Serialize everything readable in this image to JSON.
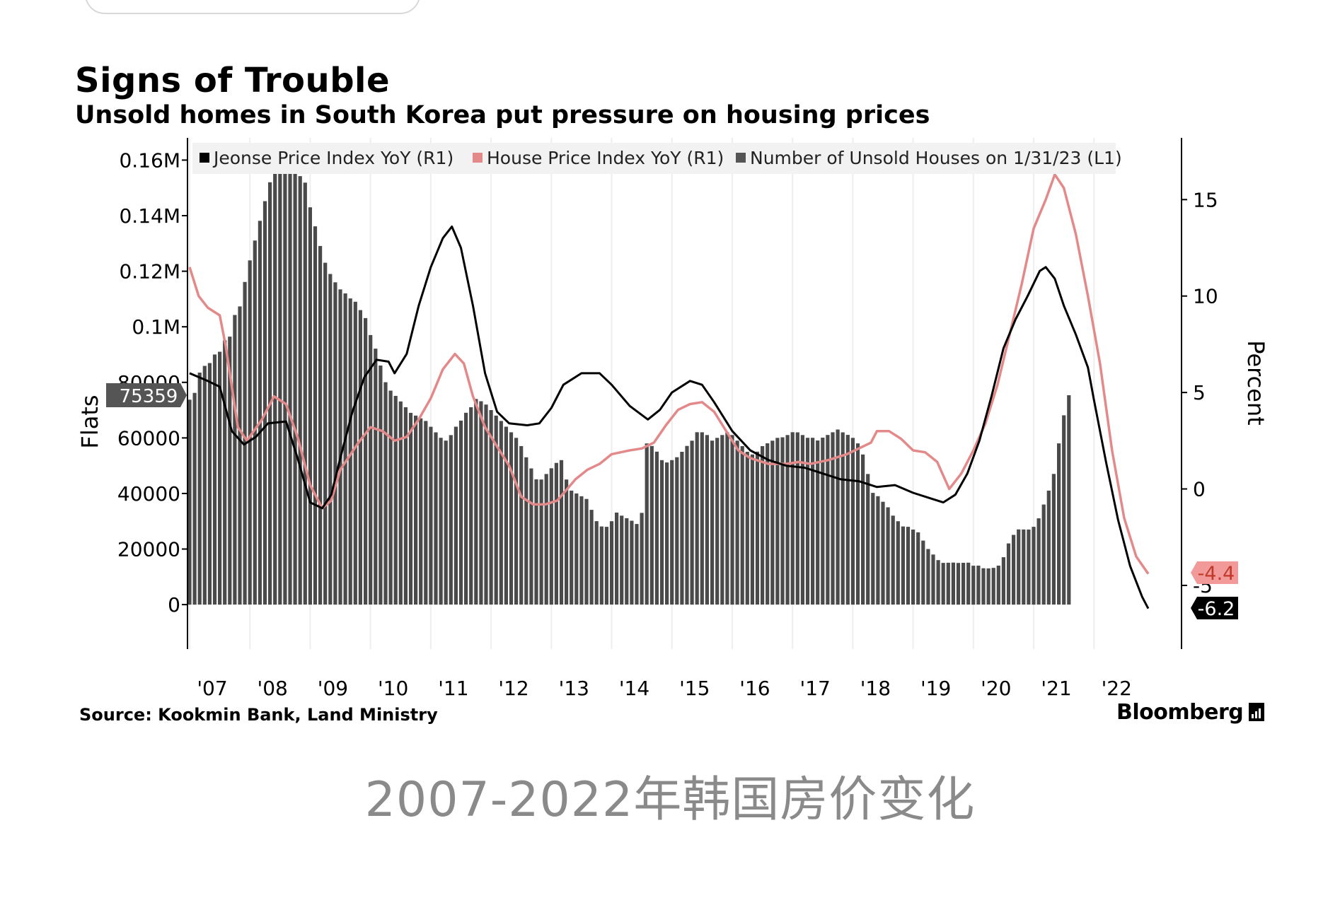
{
  "caption": "2007-2022年韩国房价变化",
  "chart_data": {
    "type": "bar+line",
    "title": "Signs of Trouble",
    "subtitle": "Unsold homes in South Korea put pressure on housing prices",
    "source": "Source: Kookmin Bank, Land Ministry",
    "brand": "Bloomberg",
    "left_axis": {
      "label": "Flats",
      "range": [
        -16000,
        168000
      ],
      "ticks": [
        {
          "value": 0,
          "label": "0"
        },
        {
          "value": 20000,
          "label": "20000"
        },
        {
          "value": 40000,
          "label": "40000"
        },
        {
          "value": 60000,
          "label": "60000"
        },
        {
          "value": 80000,
          "label": "80000"
        },
        {
          "value": 100000,
          "label": "0.1M"
        },
        {
          "value": 120000,
          "label": "0.12M"
        },
        {
          "value": 140000,
          "label": "0.14M"
        },
        {
          "value": 160000,
          "label": "0.16M"
        }
      ],
      "callout": {
        "value": 75359,
        "label": "75359"
      }
    },
    "right_axis": {
      "label": "Percent",
      "range": [
        -8.3,
        18.2
      ],
      "ticks": [
        {
          "value": -5,
          "label": "-5"
        },
        {
          "value": 0,
          "label": "0"
        },
        {
          "value": 5,
          "label": "5"
        },
        {
          "value": 10,
          "label": "10"
        },
        {
          "value": 15,
          "label": "15"
        }
      ]
    },
    "x_range": [
      2007.0,
      2023.1
    ],
    "x_ticks": [
      {
        "value": 2007,
        "label": "'07"
      },
      {
        "value": 2008,
        "label": "'08"
      },
      {
        "value": 2009,
        "label": "'09"
      },
      {
        "value": 2010,
        "label": "'10"
      },
      {
        "value": 2011,
        "label": "'11"
      },
      {
        "value": 2012,
        "label": "'12"
      },
      {
        "value": 2013,
        "label": "'13"
      },
      {
        "value": 2014,
        "label": "'14"
      },
      {
        "value": 2015,
        "label": "'15"
      },
      {
        "value": 2016,
        "label": "'16"
      },
      {
        "value": 2017,
        "label": "'17"
      },
      {
        "value": 2018,
        "label": "'18"
      },
      {
        "value": 2019,
        "label": "'19"
      },
      {
        "value": 2020,
        "label": "'20"
      },
      {
        "value": 2021,
        "label": "'21"
      },
      {
        "value": 2022,
        "label": "'22"
      }
    ],
    "series": [
      {
        "name": "Jeonse Price Index YoY (R1)",
        "kind": "line",
        "axis": "right",
        "color": "#000000",
        "callout": {
          "value": -6.2,
          "label": "-6.2",
          "bg": "#000000",
          "fg": "#ffffff"
        },
        "points": [
          [
            2007.0,
            6.0
          ],
          [
            2007.3,
            5.6
          ],
          [
            2007.5,
            5.3
          ],
          [
            2007.7,
            3.0
          ],
          [
            2007.9,
            2.3
          ],
          [
            2008.1,
            2.7
          ],
          [
            2008.3,
            3.4
          ],
          [
            2008.6,
            3.5
          ],
          [
            2008.8,
            1.5
          ],
          [
            2009.0,
            -0.7
          ],
          [
            2009.2,
            -1.0
          ],
          [
            2009.35,
            -0.3
          ],
          [
            2009.5,
            1.6
          ],
          [
            2009.7,
            4.0
          ],
          [
            2009.9,
            5.8
          ],
          [
            2010.1,
            6.7
          ],
          [
            2010.3,
            6.6
          ],
          [
            2010.4,
            6.0
          ],
          [
            2010.6,
            7.0
          ],
          [
            2010.8,
            9.5
          ],
          [
            2011.0,
            11.5
          ],
          [
            2011.2,
            13.0
          ],
          [
            2011.35,
            13.6
          ],
          [
            2011.5,
            12.5
          ],
          [
            2011.7,
            9.5
          ],
          [
            2011.9,
            6.0
          ],
          [
            2012.1,
            4.0
          ],
          [
            2012.3,
            3.4
          ],
          [
            2012.6,
            3.3
          ],
          [
            2012.8,
            3.4
          ],
          [
            2013.0,
            4.2
          ],
          [
            2013.2,
            5.4
          ],
          [
            2013.5,
            6.0
          ],
          [
            2013.8,
            6.0
          ],
          [
            2014.0,
            5.4
          ],
          [
            2014.3,
            4.3
          ],
          [
            2014.6,
            3.6
          ],
          [
            2014.8,
            4.1
          ],
          [
            2015.0,
            5.0
          ],
          [
            2015.3,
            5.6
          ],
          [
            2015.5,
            5.4
          ],
          [
            2015.7,
            4.5
          ],
          [
            2016.0,
            3.0
          ],
          [
            2016.3,
            2.0
          ],
          [
            2016.6,
            1.5
          ],
          [
            2016.9,
            1.2
          ],
          [
            2017.2,
            1.1
          ],
          [
            2017.5,
            0.8
          ],
          [
            2017.8,
            0.5
          ],
          [
            2018.1,
            0.4
          ],
          [
            2018.4,
            0.1
          ],
          [
            2018.7,
            0.2
          ],
          [
            2019.0,
            -0.2
          ],
          [
            2019.3,
            -0.5
          ],
          [
            2019.5,
            -0.7
          ],
          [
            2019.7,
            -0.3
          ],
          [
            2019.9,
            0.8
          ],
          [
            2020.1,
            2.5
          ],
          [
            2020.3,
            4.8
          ],
          [
            2020.5,
            7.3
          ],
          [
            2020.7,
            8.8
          ],
          [
            2020.9,
            10.0
          ],
          [
            2021.1,
            11.3
          ],
          [
            2021.2,
            11.5
          ],
          [
            2021.35,
            10.9
          ],
          [
            2021.5,
            9.5
          ],
          [
            2021.7,
            8.0
          ],
          [
            2021.9,
            6.3
          ],
          [
            2022.0,
            4.6
          ],
          [
            2022.2,
            1.4
          ],
          [
            2022.4,
            -1.6
          ],
          [
            2022.6,
            -4.0
          ],
          [
            2022.8,
            -5.6
          ],
          [
            2022.9,
            -6.2
          ]
        ]
      },
      {
        "name": "House Price Index YoY (R1)",
        "kind": "line",
        "axis": "right",
        "color": "#e38989",
        "callout": {
          "value": -4.4,
          "label": "-4.4",
          "bg": "#f29a9a",
          "fg": "#c0392b"
        },
        "points": [
          [
            2007.0,
            11.5
          ],
          [
            2007.15,
            10.0
          ],
          [
            2007.3,
            9.4
          ],
          [
            2007.5,
            9.0
          ],
          [
            2007.6,
            7.4
          ],
          [
            2007.8,
            3.2
          ],
          [
            2007.95,
            2.5
          ],
          [
            2008.2,
            3.6
          ],
          [
            2008.4,
            4.8
          ],
          [
            2008.6,
            4.4
          ],
          [
            2008.8,
            2.6
          ],
          [
            2009.0,
            0.2
          ],
          [
            2009.2,
            -1.0
          ],
          [
            2009.35,
            -0.6
          ],
          [
            2009.5,
            1.0
          ],
          [
            2009.8,
            2.4
          ],
          [
            2010.0,
            3.2
          ],
          [
            2010.2,
            3.0
          ],
          [
            2010.4,
            2.5
          ],
          [
            2010.6,
            2.7
          ],
          [
            2010.8,
            3.6
          ],
          [
            2011.0,
            4.7
          ],
          [
            2011.2,
            6.2
          ],
          [
            2011.4,
            7.0
          ],
          [
            2011.55,
            6.5
          ],
          [
            2011.7,
            4.8
          ],
          [
            2011.9,
            3.2
          ],
          [
            2012.1,
            2.2
          ],
          [
            2012.3,
            1.2
          ],
          [
            2012.5,
            -0.4
          ],
          [
            2012.7,
            -0.8
          ],
          [
            2012.9,
            -0.8
          ],
          [
            2013.1,
            -0.6
          ],
          [
            2013.4,
            0.5
          ],
          [
            2013.6,
            1.0
          ],
          [
            2013.8,
            1.3
          ],
          [
            2014.0,
            1.8
          ],
          [
            2014.3,
            2.0
          ],
          [
            2014.5,
            2.1
          ],
          [
            2014.7,
            2.4
          ],
          [
            2014.9,
            3.3
          ],
          [
            2015.1,
            4.1
          ],
          [
            2015.3,
            4.4
          ],
          [
            2015.5,
            4.5
          ],
          [
            2015.7,
            4.0
          ],
          [
            2015.9,
            3.0
          ],
          [
            2016.1,
            2.0
          ],
          [
            2016.3,
            1.6
          ],
          [
            2016.6,
            1.3
          ],
          [
            2016.9,
            1.3
          ],
          [
            2017.1,
            1.4
          ],
          [
            2017.3,
            1.3
          ],
          [
            2017.6,
            1.5
          ],
          [
            2017.9,
            1.8
          ],
          [
            2018.1,
            2.1
          ],
          [
            2018.3,
            2.4
          ],
          [
            2018.4,
            3.0
          ],
          [
            2018.6,
            3.0
          ],
          [
            2018.8,
            2.6
          ],
          [
            2019.0,
            2.0
          ],
          [
            2019.2,
            1.9
          ],
          [
            2019.4,
            1.4
          ],
          [
            2019.6,
            0.0
          ],
          [
            2019.8,
            0.8
          ],
          [
            2020.0,
            2.0
          ],
          [
            2020.2,
            3.4
          ],
          [
            2020.4,
            5.4
          ],
          [
            2020.6,
            8.0
          ],
          [
            2020.8,
            10.6
          ],
          [
            2021.0,
            13.5
          ],
          [
            2021.2,
            15.0
          ],
          [
            2021.35,
            16.3
          ],
          [
            2021.5,
            15.6
          ],
          [
            2021.7,
            13.2
          ],
          [
            2021.9,
            10.0
          ],
          [
            2022.1,
            6.5
          ],
          [
            2022.3,
            2.0
          ],
          [
            2022.5,
            -1.5
          ],
          [
            2022.7,
            -3.5
          ],
          [
            2022.9,
            -4.4
          ]
        ]
      },
      {
        "name": "Number of Unsold Houses on 1/31/23 (L1)",
        "kind": "bar",
        "axis": "left",
        "color": "#4a4a4a",
        "monthly_values": [
          73772,
          76213,
          83497,
          85938,
          86941,
          90024,
          91021,
          95123,
          96451,
          104250,
          107331,
          116124,
          123891,
          131043,
          138156,
          145211,
          152030,
          160120,
          162143,
          165599,
          164820,
          157241,
          154233,
          151890,
          143018,
          136157,
          129081,
          123048,
          119002,
          116017,
          113451,
          112023,
          110214,
          109002,
          106010,
          103130,
          97012,
          92123,
          86044,
          80034,
          77012,
          75123,
          73121,
          71044,
          69021,
          68032,
          67043,
          66102,
          64003,
          62011,
          60053,
          59034,
          61012,
          64029,
          66233,
          69056,
          71039,
          74018,
          73204,
          72010,
          70011,
          68023,
          66092,
          64033,
          62034,
          60015,
          57064,
          53029,
          49012,
          45103,
          45033,
          47021,
          49084,
          51012,
          52003,
          45024,
          41023,
          40012,
          39006,
          38021,
          34103,
          30031,
          28124,
          28011,
          30014,
          33121,
          32025,
          31098,
          30187,
          29011,
          33017,
          58016,
          57090,
          55064,
          52013,
          51152,
          52003,
          53047,
          55012,
          57110,
          59011,
          62045,
          62033,
          61024,
          59017,
          60011,
          61042,
          62020,
          61045,
          59034,
          57030,
          55012,
          54031,
          55043,
          57032,
          58063,
          59010,
          60012,
          60224,
          61042,
          62043,
          62009,
          61028,
          60032,
          60036,
          59081,
          60088,
          61049,
          62034,
          63032,
          62012,
          61095,
          60028,
          58024,
          54027,
          47012,
          40211,
          39022,
          37014,
          35032,
          32017,
          30011,
          28124,
          28003,
          27011,
          26018,
          23033,
          20012,
          18022,
          16015,
          15023,
          15062,
          15134,
          15010,
          15041,
          15103,
          14012,
          14031,
          13077,
          13041,
          13204,
          14022,
          17054,
          22012,
          25113,
          27049,
          27031,
          27012,
          28014,
          31045,
          36011,
          41022,
          47028,
          58027,
          68148,
          75359
        ]
      }
    ]
  }
}
